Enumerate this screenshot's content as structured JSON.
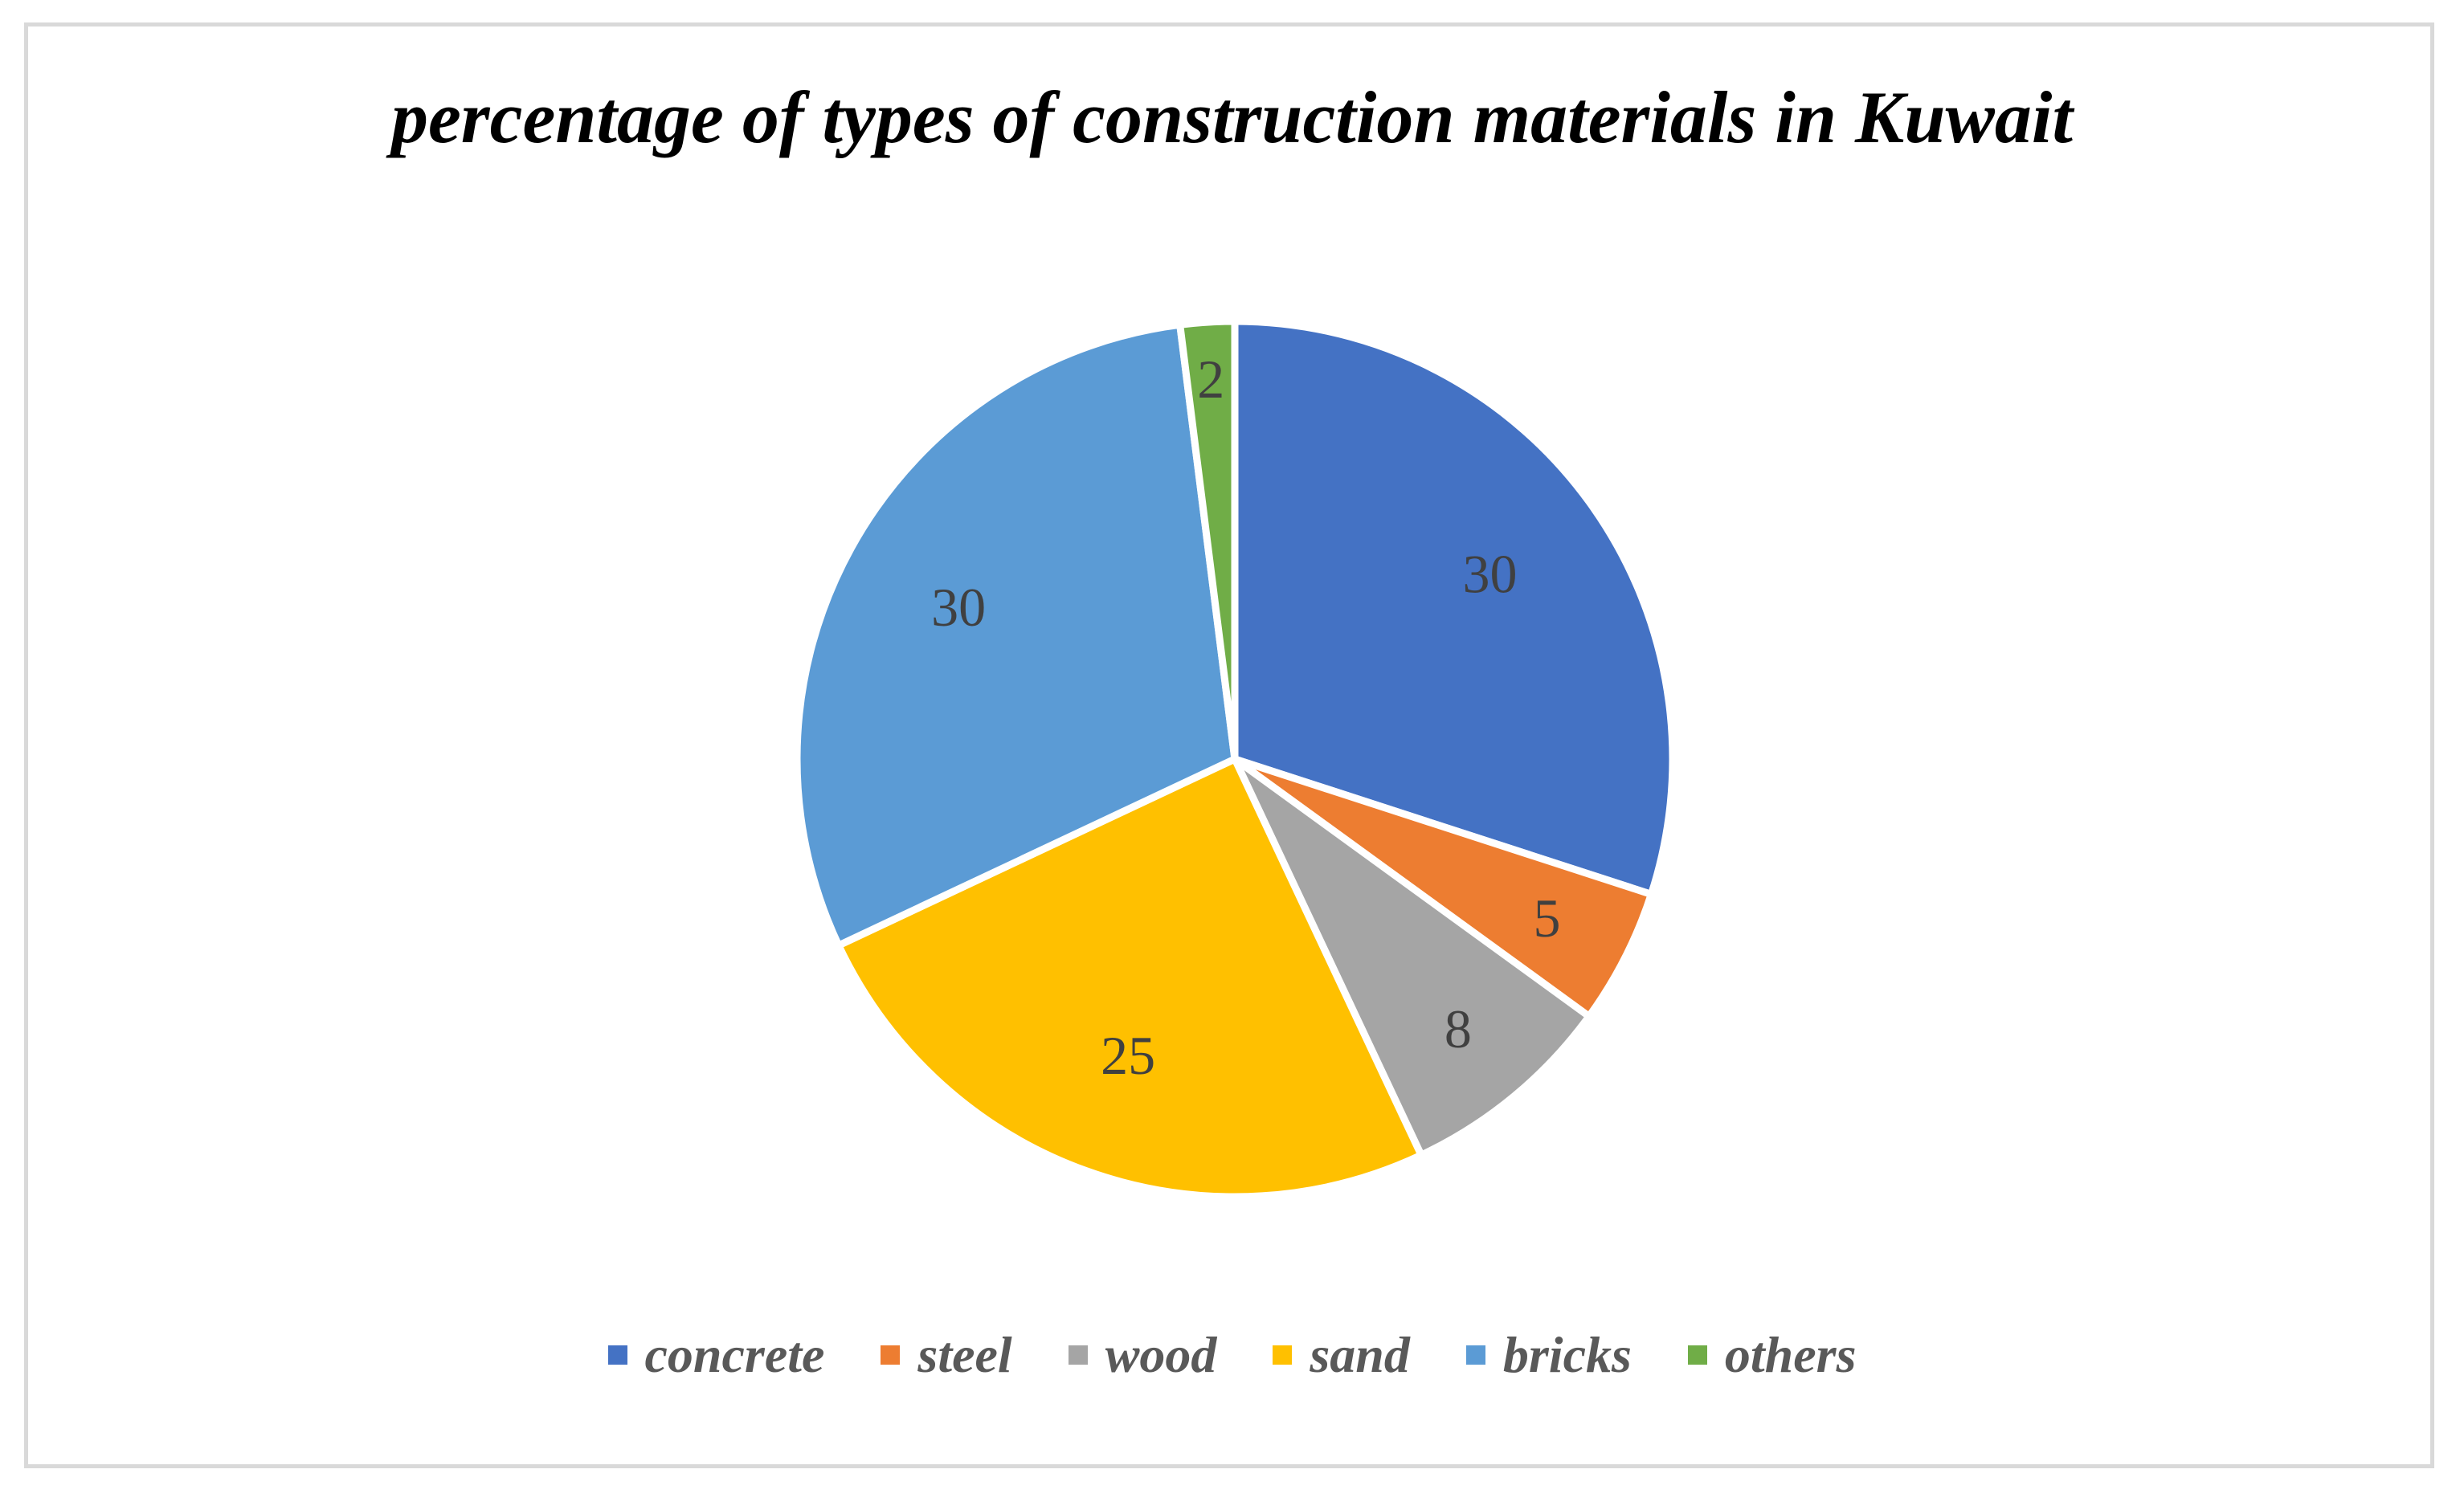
{
  "chart_data": {
    "type": "pie",
    "title": "percentage of types of construction materials in Kuwait",
    "categories": [
      "concrete",
      "steel",
      "wood",
      "sand",
      "bricks",
      "others"
    ],
    "values": [
      30,
      5,
      8,
      25,
      30,
      2
    ],
    "data_labels": [
      "30",
      "5",
      "8",
      "25",
      "30",
      "2"
    ],
    "colors": [
      "#4472c4",
      "#ed7d31",
      "#a5a5a5",
      "#ffc000",
      "#5b9bd5",
      "#70ad47"
    ],
    "legend_position": "bottom",
    "start_angle": "12 o'clock",
    "direction": "clockwise"
  }
}
